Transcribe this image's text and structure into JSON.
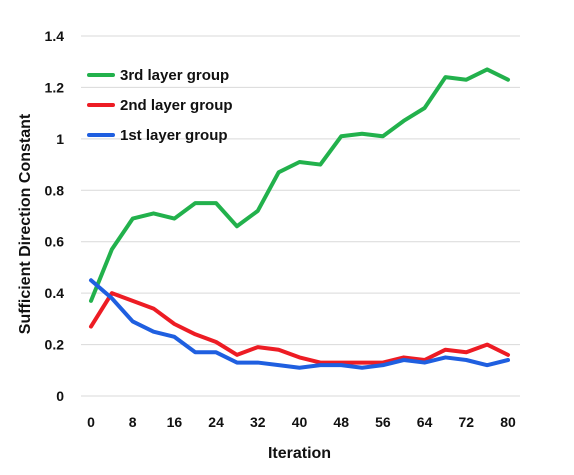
{
  "chart_data": {
    "type": "line",
    "title": "",
    "xlabel": "Iteration",
    "ylabel": "Sufficient Direction Constant",
    "xlim": [
      0,
      80
    ],
    "ylim": [
      0,
      1.4
    ],
    "x_ticks": [
      "0",
      "8",
      "16",
      "24",
      "32",
      "40",
      "48",
      "56",
      "64",
      "72",
      "80"
    ],
    "x_tick_values": [
      0,
      8,
      16,
      24,
      32,
      40,
      48,
      56,
      64,
      72,
      80
    ],
    "y_ticks": [
      "0",
      "0.2",
      "0.4",
      "0.6",
      "0.8",
      "1",
      "1.2",
      "1.4"
    ],
    "y_tick_values": [
      0,
      0.2,
      0.4,
      0.6,
      0.8,
      1.0,
      1.2,
      1.4
    ],
    "grid": "horizontal",
    "legend_position": "top-left",
    "x": [
      0,
      4,
      8,
      12,
      16,
      20,
      24,
      28,
      32,
      36,
      40,
      44,
      48,
      52,
      56,
      60,
      64,
      68,
      72,
      76,
      80
    ],
    "series": [
      {
        "name": "3rd layer group",
        "color": "#22b14c",
        "values": [
          0.37,
          0.57,
          0.69,
          0.71,
          0.69,
          0.75,
          0.75,
          0.66,
          0.72,
          0.87,
          0.91,
          0.9,
          1.01,
          1.02,
          1.01,
          1.07,
          1.12,
          1.24,
          1.23,
          1.27,
          1.23
        ]
      },
      {
        "name": "2nd layer group",
        "color": "#ed1c24",
        "values": [
          0.27,
          0.4,
          0.37,
          0.34,
          0.28,
          0.24,
          0.21,
          0.16,
          0.19,
          0.18,
          0.15,
          0.13,
          0.13,
          0.13,
          0.13,
          0.15,
          0.14,
          0.18,
          0.17,
          0.2,
          0.16
        ]
      },
      {
        "name": "1st layer group",
        "color": "#1f5fe0",
        "values": [
          0.45,
          0.38,
          0.29,
          0.25,
          0.23,
          0.17,
          0.17,
          0.13,
          0.13,
          0.12,
          0.11,
          0.12,
          0.12,
          0.11,
          0.12,
          0.14,
          0.13,
          0.15,
          0.14,
          0.12,
          0.14
        ]
      }
    ]
  }
}
